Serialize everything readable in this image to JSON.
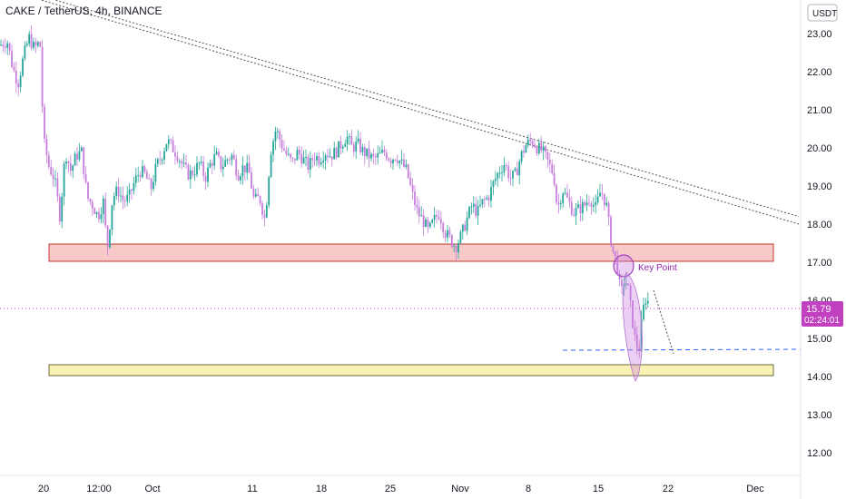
{
  "header": {
    "title": "CAKE / TetherUS, 4h, BINANCE",
    "currency": "USDT"
  },
  "price_tag": {
    "price": "15.79",
    "countdown": "02:24:01"
  },
  "annotation": {
    "label": "Key Point"
  },
  "colors": {
    "up": "#26a69a",
    "down": "#c77ddc",
    "resistance_zone": "#f8c9c9",
    "resistance_border": "#c0392b",
    "support_zone": "#fbf3b5",
    "support_border": "#6b6b3a",
    "price_line": "#c040c0",
    "target_line": "#2962ff",
    "trend_line": "#555555"
  },
  "chart_data": {
    "type": "candlestick",
    "title": "CAKE / TetherUS, 4h, BINANCE",
    "ylabel": "USDT",
    "ylim": [
      11.2,
      24.0
    ],
    "y_ticks": [
      "23.00",
      "22.00",
      "21.00",
      "20.00",
      "19.00",
      "18.00",
      "17.00",
      "16.00",
      "15.00",
      "14.00",
      "13.00",
      "12.00"
    ],
    "x_ticks": [
      "20",
      "12:00",
      "Oct",
      "11",
      "18",
      "25",
      "Nov",
      "8",
      "15",
      "22",
      "Dec"
    ],
    "current_price": 15.79,
    "zones": [
      {
        "name": "resistance",
        "low": 17.0,
        "high": 17.5
      },
      {
        "name": "support",
        "low": 14.0,
        "high": 14.3
      }
    ],
    "target_level": 14.68,
    "trend_lines": [
      {
        "from": [
          0,
          24.2
        ],
        "to": [
          880,
          18.0
        ]
      },
      {
        "from": [
          0,
          24.3
        ],
        "to": [
          880,
          18.2
        ]
      }
    ],
    "close_path": [
      [
        0,
        22.7
      ],
      [
        8,
        22.8
      ],
      [
        14,
        22.1
      ],
      [
        20,
        21.7
      ],
      [
        26,
        22.4
      ],
      [
        32,
        22.9
      ],
      [
        38,
        22.6
      ],
      [
        44,
        22.8
      ],
      [
        48,
        20.2
      ],
      [
        54,
        19.5
      ],
      [
        60,
        19.2
      ],
      [
        66,
        18.2
      ],
      [
        72,
        19.9
      ],
      [
        78,
        19.4
      ],
      [
        84,
        19.8
      ],
      [
        90,
        19.9
      ],
      [
        96,
        18.7
      ],
      [
        102,
        18.5
      ],
      [
        108,
        18.2
      ],
      [
        114,
        18.6
      ],
      [
        118,
        17.3
      ],
      [
        124,
        18.7
      ],
      [
        130,
        18.9
      ],
      [
        136,
        18.6
      ],
      [
        142,
        18.7
      ],
      [
        148,
        19.1
      ],
      [
        154,
        19.4
      ],
      [
        160,
        19.3
      ],
      [
        166,
        18.9
      ],
      [
        172,
        19.5
      ],
      [
        178,
        19.8
      ],
      [
        184,
        20.2
      ],
      [
        190,
        20.0
      ],
      [
        196,
        19.8
      ],
      [
        202,
        19.5
      ],
      [
        208,
        19.3
      ],
      [
        214,
        19.4
      ],
      [
        220,
        19.6
      ],
      [
        226,
        19.2
      ],
      [
        232,
        19.6
      ],
      [
        238,
        19.8
      ],
      [
        244,
        19.5
      ],
      [
        250,
        19.7
      ],
      [
        256,
        19.8
      ],
      [
        262,
        19.3
      ],
      [
        268,
        19.5
      ],
      [
        274,
        19.4
      ],
      [
        280,
        18.6
      ],
      [
        286,
        18.7
      ],
      [
        292,
        18.1
      ],
      [
        298,
        19.9
      ],
      [
        304,
        20.5
      ],
      [
        310,
        20.1
      ],
      [
        316,
        19.8
      ],
      [
        322,
        19.6
      ],
      [
        328,
        19.9
      ],
      [
        334,
        19.7
      ],
      [
        340,
        19.5
      ],
      [
        346,
        19.8
      ],
      [
        352,
        19.7
      ],
      [
        358,
        19.9
      ],
      [
        364,
        19.8
      ],
      [
        370,
        19.9
      ],
      [
        376,
        20.1
      ],
      [
        382,
        20.3
      ],
      [
        388,
        20.0
      ],
      [
        394,
        20.1
      ],
      [
        400,
        19.9
      ],
      [
        406,
        19.8
      ],
      [
        412,
        19.7
      ],
      [
        418,
        19.8
      ],
      [
        424,
        19.9
      ],
      [
        430,
        19.7
      ],
      [
        436,
        19.8
      ],
      [
        442,
        19.6
      ],
      [
        448,
        19.4
      ],
      [
        454,
        18.8
      ],
      [
        460,
        18.3
      ],
      [
        466,
        18.1
      ],
      [
        472,
        17.8
      ],
      [
        478,
        18.1
      ],
      [
        484,
        18.3
      ],
      [
        490,
        17.8
      ],
      [
        496,
        17.6
      ],
      [
        502,
        17.4
      ],
      [
        508,
        17.7
      ],
      [
        514,
        18.1
      ],
      [
        520,
        18.5
      ],
      [
        526,
        18.3
      ],
      [
        532,
        18.6
      ],
      [
        538,
        18.7
      ],
      [
        544,
        19.1
      ],
      [
        550,
        19.4
      ],
      [
        556,
        19.6
      ],
      [
        562,
        19.2
      ],
      [
        568,
        19.3
      ],
      [
        574,
        19.8
      ],
      [
        580,
        20.1
      ],
      [
        586,
        20.2
      ],
      [
        592,
        20.0
      ],
      [
        598,
        19.9
      ],
      [
        604,
        19.6
      ],
      [
        610,
        19.3
      ],
      [
        614,
        18.4
      ],
      [
        620,
        18.9
      ],
      [
        626,
        18.6
      ],
      [
        632,
        18.3
      ],
      [
        638,
        18.4
      ],
      [
        644,
        18.5
      ],
      [
        650,
        18.7
      ],
      [
        656,
        18.4
      ],
      [
        662,
        18.9
      ],
      [
        668,
        18.5
      ],
      [
        674,
        17.4
      ],
      [
        680,
        16.9
      ],
      [
        684,
        16.1
      ],
      [
        688,
        16.6
      ],
      [
        692,
        16.3
      ],
      [
        696,
        15.6
      ],
      [
        700,
        14.9
      ],
      [
        704,
        14.7
      ],
      [
        708,
        15.7
      ],
      [
        712,
        16.1
      ],
      [
        716,
        15.8
      ]
    ]
  }
}
